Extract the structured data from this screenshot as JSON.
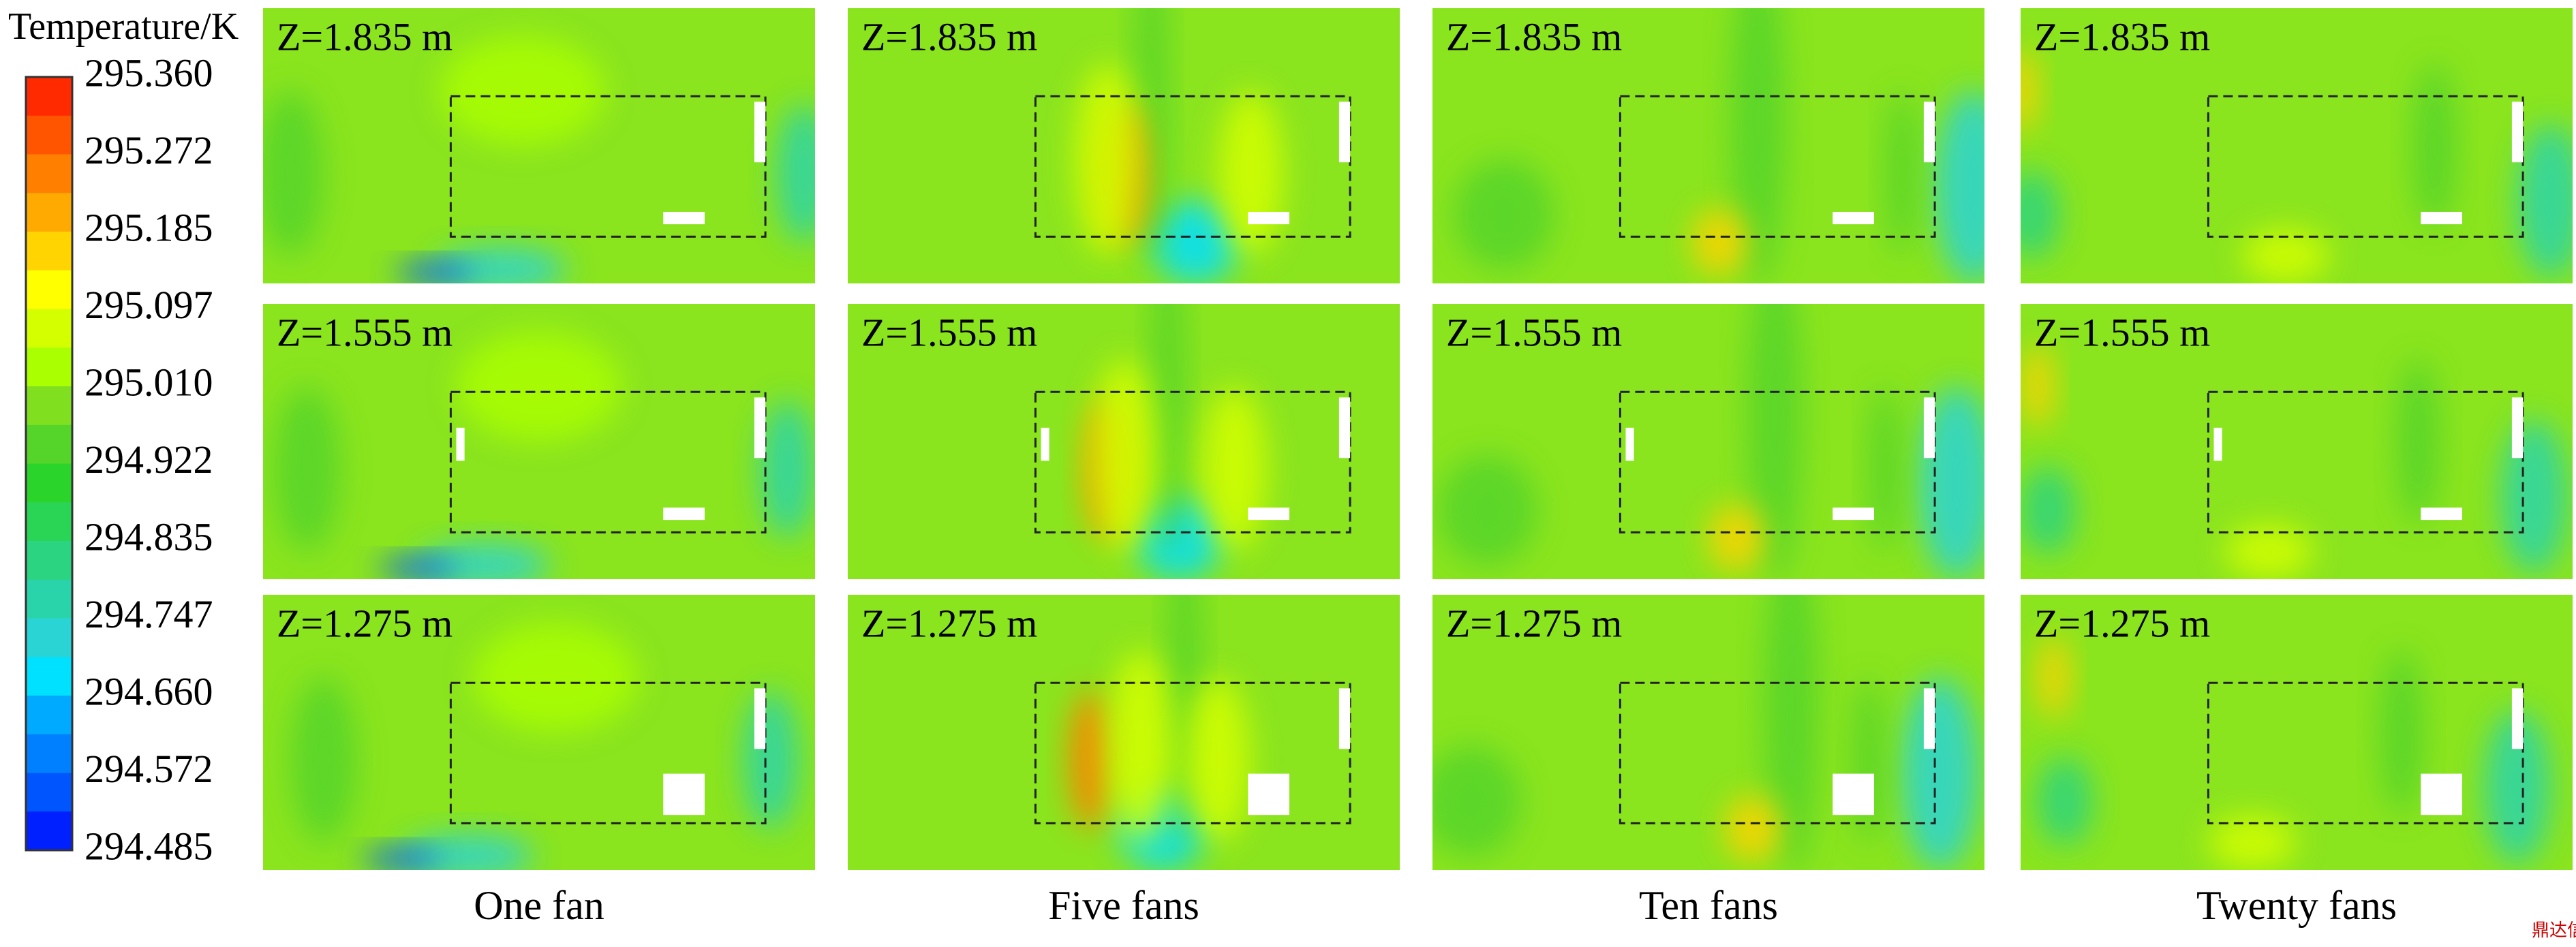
{
  "colorbar": {
    "title": "Temperature/K",
    "ticks": [
      "295.360",
      "295.272",
      "295.185",
      "295.097",
      "295.010",
      "294.922",
      "294.835",
      "294.747",
      "294.660",
      "294.572",
      "294.485"
    ]
  },
  "row_labels": [
    "Z=1.835 m",
    "Z=1.555 m",
    "Z=1.275 m"
  ],
  "columns": [
    "One fan",
    "Five fans",
    "Ten fans",
    "Twenty fans"
  ],
  "watermark": "鼎达信"
}
